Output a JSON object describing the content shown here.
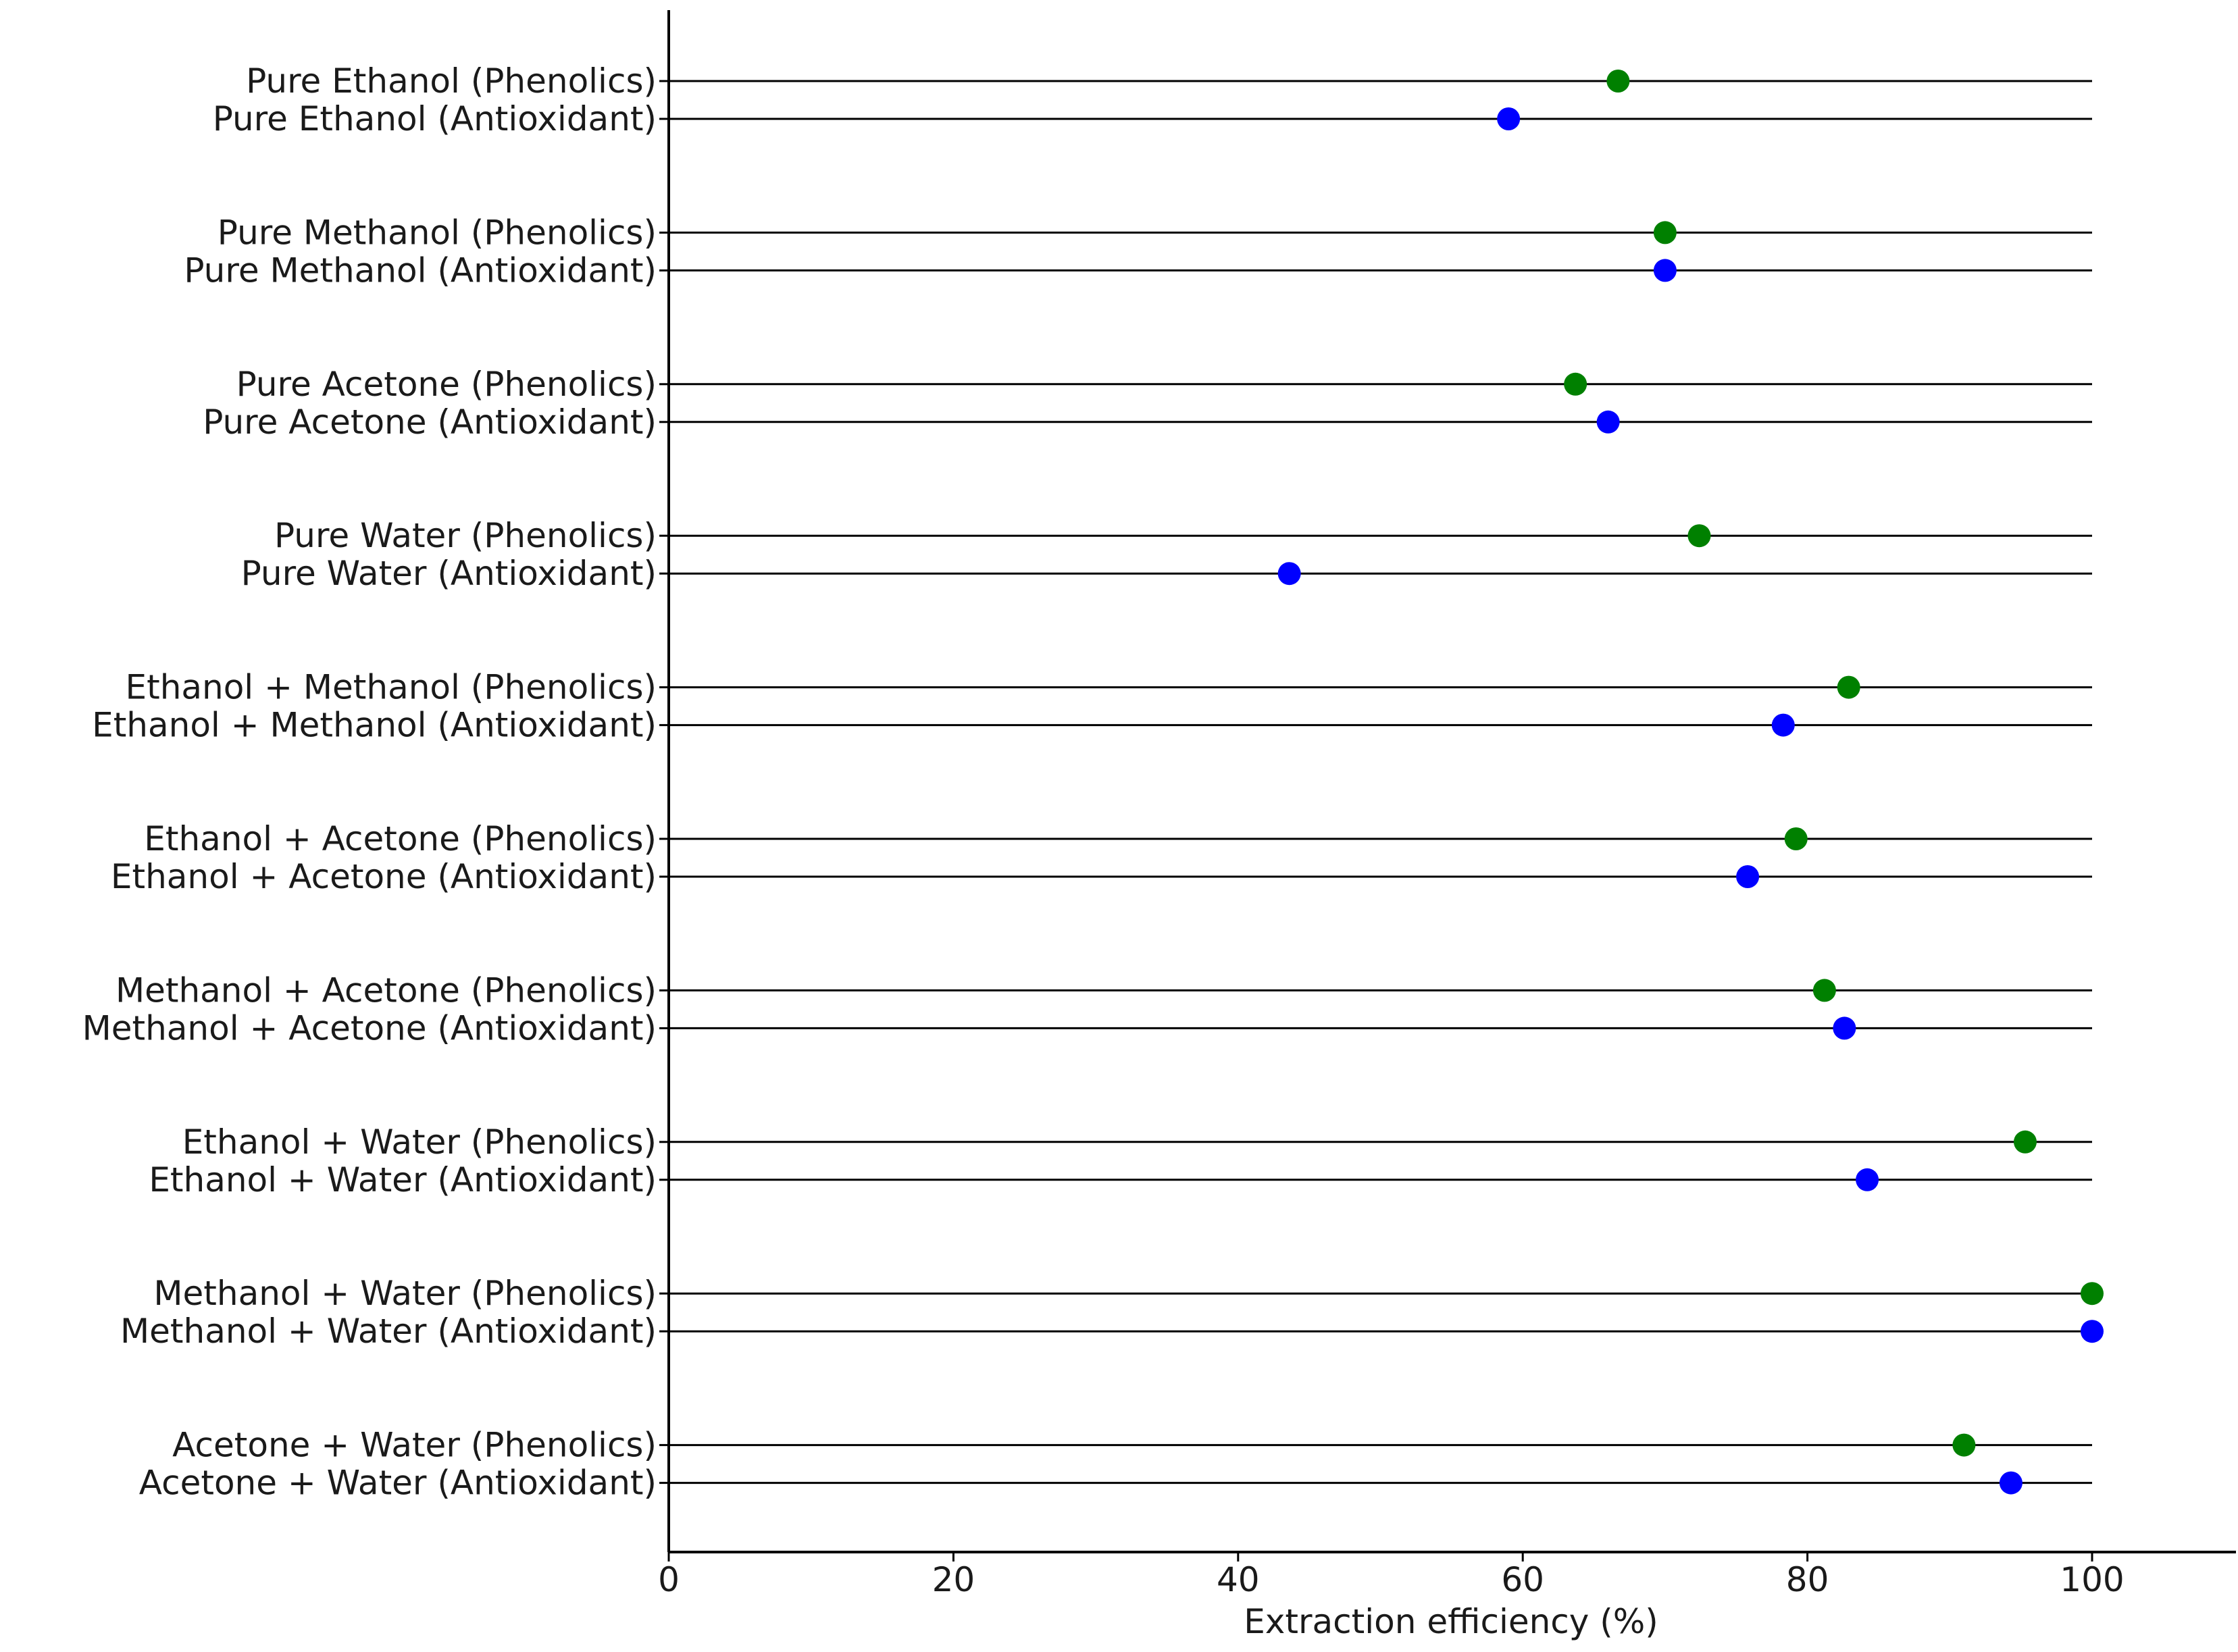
{
  "chart_data": {
    "type": "scatter",
    "orientation": "horizontal",
    "title": "",
    "xlabel": "Extraction efficiency (%)",
    "ylabel": "",
    "xlim": [
      0,
      110
    ],
    "xticks": [
      0,
      20,
      40,
      60,
      80,
      100
    ],
    "grid": false,
    "legend": "none",
    "colors": {
      "Phenolics": "#008000",
      "Antioxidant": "#0000ff",
      "stem": "#000000"
    },
    "categories": [
      "Pure Ethanol (Phenolics)",
      "Pure Ethanol (Antioxidant)",
      "Pure Methanol (Phenolics)",
      "Pure Methanol (Antioxidant)",
      "Pure Acetone (Phenolics)",
      "Pure Acetone (Antioxidant)",
      "Pure Water (Phenolics)",
      "Pure Water (Antioxidant)",
      "Ethanol + Methanol (Phenolics)",
      "Ethanol + Methanol (Antioxidant)",
      "Ethanol + Acetone (Phenolics)",
      "Ethanol + Acetone (Antioxidant)",
      "Methanol + Acetone (Phenolics)",
      "Methanol + Acetone (Antioxidant)",
      "Ethanol + Water (Phenolics)",
      "Ethanol + Water (Antioxidant)",
      "Methanol + Water (Phenolics)",
      "Methanol + Water (Antioxidant)",
      "Acetone + Water (Phenolics)",
      "Acetone + Water (Antioxidant)"
    ],
    "values": [
      66.7,
      59.0,
      70.0,
      70.0,
      63.7,
      66.0,
      72.4,
      43.6,
      82.9,
      78.3,
      79.2,
      75.8,
      81.2,
      82.6,
      95.3,
      84.2,
      100.0,
      100.0,
      91.0,
      94.3
    ],
    "series_of_point": [
      "Phenolics",
      "Antioxidant",
      "Phenolics",
      "Antioxidant",
      "Phenolics",
      "Antioxidant",
      "Phenolics",
      "Antioxidant",
      "Phenolics",
      "Antioxidant",
      "Phenolics",
      "Antioxidant",
      "Phenolics",
      "Antioxidant",
      "Phenolics",
      "Antioxidant",
      "Phenolics",
      "Antioxidant",
      "Phenolics",
      "Antioxidant"
    ],
    "stem_end": 100
  }
}
